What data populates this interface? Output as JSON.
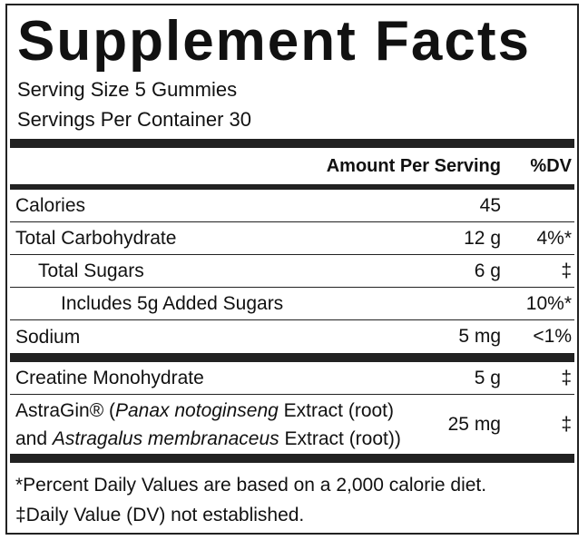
{
  "title": "Supplement Facts",
  "serving_size": "Serving Size 5 Gummies",
  "servings_per_container": "Servings Per Container 30",
  "header": {
    "amount": "Amount Per Serving",
    "dv": "%DV"
  },
  "rows": [
    {
      "name": "Calories",
      "amount": "45"
    },
    {
      "name": "Total Carbohydrate",
      "amount": "12 g",
      "dv": "4%*"
    },
    {
      "name": "Total Sugars",
      "amount": "6 g",
      "dv": "‡"
    },
    {
      "name": "Includes 5g Added Sugars",
      "dv": "10%*"
    },
    {
      "name": "Sodium",
      "amount": "5 mg",
      "dv": "<1%"
    },
    {
      "name": "Creatine Monohydrate",
      "amount": "5 g",
      "dv": "‡"
    },
    {
      "name_lines": [
        [
          {
            "text": "AstraGin® ("
          },
          {
            "text": "Panax notoginseng",
            "italic": true
          },
          {
            "text": " Extract (root)"
          }
        ],
        [
          {
            "text": "and "
          },
          {
            "text": "Astragalus membranaceus",
            "italic": true
          },
          {
            "text": " Extract (root))"
          }
        ]
      ],
      "amount": "25 mg",
      "dv": "‡"
    }
  ],
  "footnotes": [
    "*Percent Daily Values are based on a 2,000 calorie diet.",
    "‡Daily Value (DV) not established."
  ]
}
